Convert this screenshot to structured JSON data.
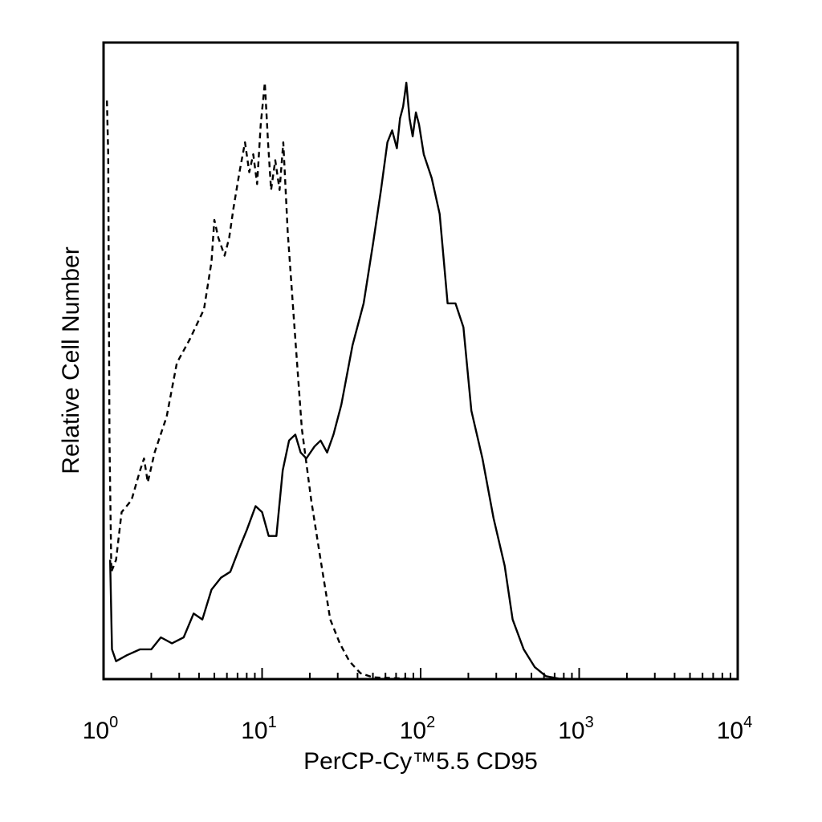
{
  "chart_data": {
    "type": "line",
    "title": "",
    "xlabel": "PerCP-Cy™5.5 CD95",
    "ylabel": "Relative Cell Number",
    "x_scale": "log",
    "xlim": [
      1,
      10000
    ],
    "ylim": [
      0,
      100
    ],
    "x_ticks": [
      {
        "base": "10",
        "exp": "0",
        "value": 1
      },
      {
        "base": "10",
        "exp": "1",
        "value": 10
      },
      {
        "base": "10",
        "exp": "2",
        "value": 100
      },
      {
        "base": "10",
        "exp": "3",
        "value": 1000
      },
      {
        "base": "10",
        "exp": "4",
        "value": 10000
      }
    ],
    "grid": false,
    "legend": "none",
    "series": [
      {
        "style": "dashed",
        "color": "#000000",
        "points": [
          [
            1.05,
            97
          ],
          [
            1.07,
            88
          ],
          [
            1.09,
            40
          ],
          [
            1.12,
            18
          ],
          [
            1.2,
            20
          ],
          [
            1.3,
            28
          ],
          [
            1.5,
            30
          ],
          [
            1.7,
            35
          ],
          [
            1.8,
            37
          ],
          [
            1.9,
            33
          ],
          [
            2.1,
            38
          ],
          [
            2.5,
            44
          ],
          [
            2.9,
            53
          ],
          [
            3.5,
            57
          ],
          [
            4.3,
            62
          ],
          [
            4.8,
            70
          ],
          [
            5.0,
            77
          ],
          [
            5.3,
            74
          ],
          [
            5.8,
            71
          ],
          [
            6.2,
            74
          ],
          [
            6.6,
            79
          ],
          [
            7.2,
            85
          ],
          [
            7.8,
            90
          ],
          [
            8.3,
            85
          ],
          [
            8.8,
            88
          ],
          [
            9.3,
            83
          ],
          [
            9.8,
            93
          ],
          [
            10.4,
            100
          ],
          [
            10.9,
            90
          ],
          [
            11.4,
            82
          ],
          [
            12.1,
            87
          ],
          [
            12.9,
            82
          ],
          [
            13.6,
            90
          ],
          [
            14.5,
            75
          ],
          [
            15.9,
            60
          ],
          [
            17.8,
            42
          ],
          [
            20.4,
            30
          ],
          [
            23.4,
            20
          ],
          [
            26.9,
            10
          ],
          [
            30.9,
            6
          ],
          [
            35.5,
            3
          ],
          [
            41.7,
            1
          ],
          [
            50,
            0.3
          ],
          [
            100,
            0
          ],
          [
            1000,
            0
          ],
          [
            10000,
            0
          ]
        ]
      },
      {
        "style": "solid",
        "color": "#000000",
        "points": [
          [
            1.1,
            20
          ],
          [
            1.13,
            5
          ],
          [
            1.2,
            3
          ],
          [
            1.4,
            4
          ],
          [
            1.7,
            5
          ],
          [
            2.0,
            5
          ],
          [
            2.3,
            7
          ],
          [
            2.7,
            6
          ],
          [
            3.2,
            7
          ],
          [
            3.7,
            11
          ],
          [
            4.2,
            10
          ],
          [
            4.8,
            15
          ],
          [
            5.5,
            17
          ],
          [
            6.3,
            18
          ],
          [
            7.2,
            22
          ],
          [
            8.0,
            25
          ],
          [
            9.1,
            29
          ],
          [
            10.0,
            28
          ],
          [
            11.0,
            24
          ],
          [
            12.3,
            24
          ],
          [
            13.5,
            35
          ],
          [
            14.8,
            40
          ],
          [
            16.2,
            41
          ],
          [
            17.5,
            38
          ],
          [
            19.0,
            37
          ],
          [
            21.4,
            39
          ],
          [
            23.4,
            40
          ],
          [
            25.7,
            38
          ],
          [
            28.2,
            41
          ],
          [
            31.6,
            46
          ],
          [
            37.2,
            56
          ],
          [
            43.7,
            63
          ],
          [
            50.1,
            73
          ],
          [
            56.2,
            82
          ],
          [
            61.7,
            90
          ],
          [
            66.1,
            92
          ],
          [
            70.8,
            89
          ],
          [
            74.1,
            94
          ],
          [
            77.6,
            96
          ],
          [
            81.3,
            100
          ],
          [
            85.1,
            94
          ],
          [
            89.1,
            91
          ],
          [
            93.3,
            95
          ],
          [
            97.7,
            93
          ],
          [
            104.7,
            88
          ],
          [
            117.5,
            84
          ],
          [
            131.8,
            78
          ],
          [
            147.9,
            63
          ],
          [
            165.9,
            63
          ],
          [
            186.2,
            59
          ],
          [
            209.0,
            45
          ],
          [
            245.5,
            37
          ],
          [
            288.4,
            27
          ],
          [
            338.8,
            19
          ],
          [
            380.2,
            10
          ],
          [
            446.7,
            5
          ],
          [
            524.8,
            2
          ],
          [
            616.6,
            0.5
          ],
          [
            741.3,
            0.1
          ],
          [
            1000,
            0
          ],
          [
            10000,
            0
          ]
        ]
      }
    ]
  }
}
